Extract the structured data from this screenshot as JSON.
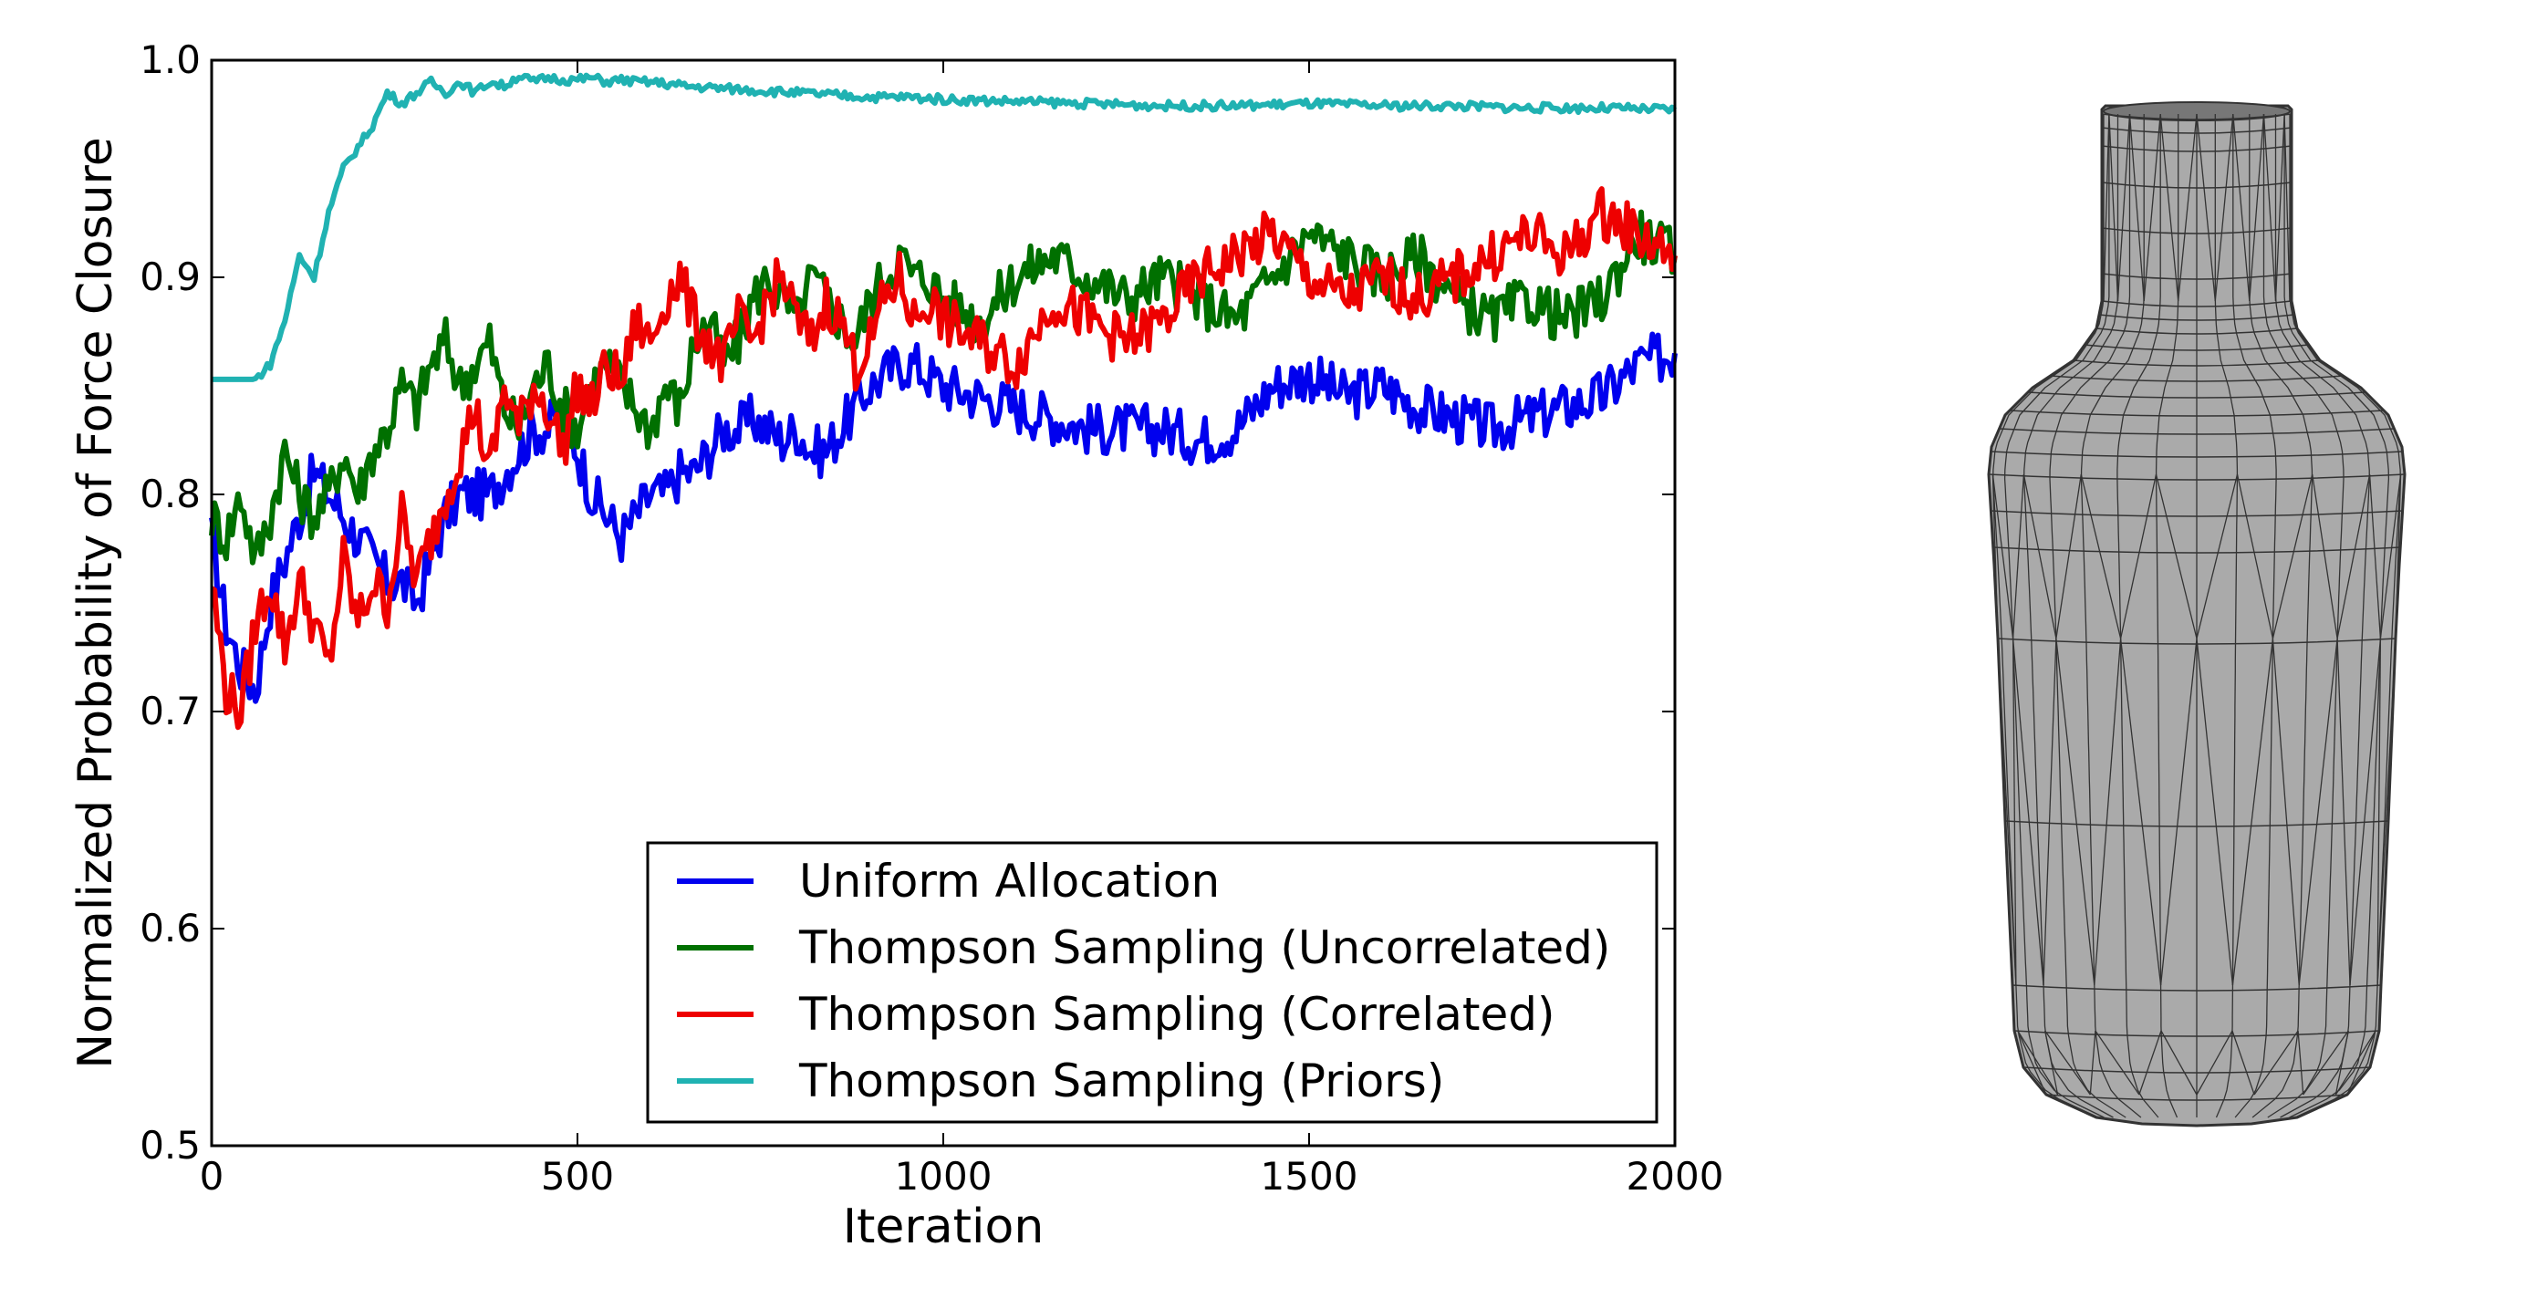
{
  "chart_data": {
    "type": "line",
    "title": "",
    "xlabel": "Iteration",
    "ylabel": "Normalized Probability of Force Closure",
    "xlim": [
      0,
      2000
    ],
    "ylim": [
      0.5,
      1.0
    ],
    "xticks": [
      "0",
      "500",
      "1000",
      "1500",
      "2000"
    ],
    "yticks": [
      "0.5",
      "0.6",
      "0.7",
      "0.8",
      "0.9",
      "1.0"
    ],
    "grid": false,
    "legend_position": "lower-right",
    "series": [
      {
        "name": "Uniform Allocation",
        "color": "#0000ee",
        "x": [
          0,
          20,
          40,
          60,
          80,
          100,
          120,
          140,
          160,
          180,
          200,
          220,
          240,
          260,
          280,
          300,
          320,
          340,
          360,
          380,
          400,
          420,
          440,
          460,
          480,
          500,
          520,
          540,
          560,
          580,
          600,
          620,
          640,
          660,
          680,
          700,
          720,
          740,
          760,
          780,
          800,
          820,
          840,
          860,
          880,
          900,
          920,
          940,
          960,
          980,
          1000,
          1050,
          1100,
          1150,
          1200,
          1250,
          1300,
          1350,
          1400,
          1450,
          1500,
          1550,
          1600,
          1650,
          1700,
          1750,
          1800,
          1850,
          1900,
          1950,
          2000
        ],
        "y": [
          0.78,
          0.74,
          0.72,
          0.71,
          0.75,
          0.77,
          0.79,
          0.81,
          0.8,
          0.79,
          0.78,
          0.77,
          0.76,
          0.76,
          0.75,
          0.77,
          0.79,
          0.8,
          0.8,
          0.8,
          0.81,
          0.82,
          0.83,
          0.83,
          0.84,
          0.82,
          0.8,
          0.79,
          0.78,
          0.79,
          0.8,
          0.8,
          0.81,
          0.81,
          0.82,
          0.83,
          0.83,
          0.835,
          0.83,
          0.825,
          0.83,
          0.82,
          0.82,
          0.83,
          0.84,
          0.85,
          0.855,
          0.86,
          0.86,
          0.855,
          0.85,
          0.845,
          0.84,
          0.835,
          0.83,
          0.83,
          0.83,
          0.825,
          0.83,
          0.85,
          0.855,
          0.845,
          0.85,
          0.84,
          0.835,
          0.83,
          0.835,
          0.84,
          0.845,
          0.86,
          0.865
        ]
      },
      {
        "name": "Thompson Sampling (Uncorrelated)",
        "color": "#007000",
        "x": [
          0,
          20,
          40,
          60,
          80,
          100,
          120,
          140,
          160,
          180,
          200,
          220,
          240,
          260,
          280,
          300,
          320,
          340,
          360,
          380,
          400,
          420,
          440,
          460,
          480,
          500,
          520,
          540,
          560,
          580,
          600,
          620,
          640,
          660,
          680,
          700,
          720,
          740,
          760,
          780,
          800,
          820,
          840,
          860,
          880,
          900,
          920,
          940,
          960,
          980,
          1000,
          1050,
          1100,
          1150,
          1200,
          1250,
          1300,
          1350,
          1400,
          1450,
          1500,
          1550,
          1600,
          1650,
          1700,
          1750,
          1800,
          1850,
          1900,
          1950,
          2000
        ],
        "y": [
          0.79,
          0.78,
          0.8,
          0.77,
          0.79,
          0.82,
          0.8,
          0.79,
          0.8,
          0.82,
          0.8,
          0.82,
          0.83,
          0.85,
          0.84,
          0.86,
          0.87,
          0.85,
          0.86,
          0.87,
          0.84,
          0.83,
          0.85,
          0.86,
          0.84,
          0.83,
          0.85,
          0.86,
          0.85,
          0.84,
          0.83,
          0.85,
          0.84,
          0.87,
          0.88,
          0.86,
          0.87,
          0.89,
          0.9,
          0.89,
          0.88,
          0.9,
          0.89,
          0.88,
          0.87,
          0.89,
          0.9,
          0.91,
          0.9,
          0.9,
          0.89,
          0.88,
          0.9,
          0.91,
          0.9,
          0.89,
          0.9,
          0.89,
          0.88,
          0.9,
          0.92,
          0.91,
          0.9,
          0.91,
          0.89,
          0.88,
          0.89,
          0.88,
          0.89,
          0.92,
          0.91
        ]
      },
      {
        "name": "Thompson Sampling (Correlated)",
        "color": "#ee0000",
        "x": [
          0,
          20,
          40,
          60,
          80,
          100,
          120,
          140,
          160,
          180,
          200,
          220,
          240,
          260,
          280,
          300,
          320,
          340,
          360,
          380,
          400,
          420,
          440,
          460,
          480,
          500,
          520,
          540,
          560,
          580,
          600,
          620,
          640,
          660,
          680,
          700,
          720,
          740,
          760,
          780,
          800,
          820,
          840,
          860,
          880,
          900,
          920,
          940,
          960,
          980,
          1000,
          1050,
          1100,
          1150,
          1200,
          1250,
          1300,
          1350,
          1400,
          1450,
          1500,
          1550,
          1600,
          1650,
          1700,
          1750,
          1800,
          1850,
          1900,
          1950,
          2000
        ],
        "y": [
          0.76,
          0.71,
          0.7,
          0.74,
          0.76,
          0.73,
          0.76,
          0.74,
          0.72,
          0.77,
          0.74,
          0.76,
          0.75,
          0.79,
          0.76,
          0.78,
          0.8,
          0.82,
          0.84,
          0.81,
          0.85,
          0.83,
          0.85,
          0.84,
          0.82,
          0.85,
          0.84,
          0.86,
          0.85,
          0.88,
          0.87,
          0.89,
          0.9,
          0.88,
          0.87,
          0.86,
          0.88,
          0.87,
          0.89,
          0.9,
          0.88,
          0.87,
          0.89,
          0.88,
          0.86,
          0.87,
          0.89,
          0.9,
          0.88,
          0.89,
          0.88,
          0.87,
          0.86,
          0.89,
          0.88,
          0.87,
          0.88,
          0.9,
          0.91,
          0.92,
          0.9,
          0.89,
          0.9,
          0.89,
          0.9,
          0.91,
          0.92,
          0.91,
          0.93,
          0.92,
          0.91
        ]
      },
      {
        "name": "Thompson Sampling (Priors)",
        "color": "#20b2b2",
        "x": [
          0,
          20,
          40,
          60,
          80,
          100,
          120,
          140,
          160,
          180,
          200,
          220,
          240,
          260,
          280,
          300,
          320,
          340,
          360,
          380,
          400,
          420,
          440,
          460,
          480,
          500,
          520,
          540,
          560,
          580,
          600,
          650,
          700,
          750,
          800,
          850,
          900,
          950,
          1000,
          1100,
          1200,
          1300,
          1400,
          1500,
          1600,
          1700,
          1800,
          1900,
          2000
        ],
        "y": [
          0.853,
          0.853,
          0.853,
          0.853,
          0.86,
          0.88,
          0.91,
          0.9,
          0.93,
          0.95,
          0.96,
          0.97,
          0.985,
          0.98,
          0.985,
          0.99,
          0.985,
          0.99,
          0.985,
          0.99,
          0.988,
          0.993,
          0.99,
          0.992,
          0.991,
          0.991,
          0.992,
          0.99,
          0.991,
          0.99,
          0.99,
          0.988,
          0.987,
          0.986,
          0.985,
          0.984,
          0.983,
          0.983,
          0.982,
          0.981,
          0.98,
          0.979,
          0.979,
          0.98,
          0.979,
          0.979,
          0.978,
          0.978,
          0.977
        ]
      }
    ]
  },
  "bottle_image": {
    "description_icon": "bottle-mesh-icon",
    "fill_color": "#aaaaaa",
    "edge_color": "#333333"
  }
}
